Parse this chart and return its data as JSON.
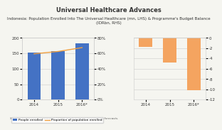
{
  "title": "Universal Healthcare Advances",
  "subtitle": "Indonesia: Population Enrolled Into The Universal Healthcare (mn, LHS) & Programme's Budget Balance\n(IDRbn, RHS)",
  "source": "Source: Indonesia Investments *2016 are Indonesia investment forecasts.",
  "left": {
    "years": [
      "2014",
      "2015",
      "2016*"
    ],
    "bar_values": [
      152,
      158,
      182
    ],
    "line_values": [
      0.595,
      0.625,
      0.675
    ],
    "bar_color": "#4472c4",
    "line_color": "#f0a040",
    "ylim_left": [
      0,
      200
    ],
    "ylim_right": [
      0,
      0.8
    ],
    "yticks_left": [
      0,
      50,
      100,
      150,
      200
    ],
    "yticks_right": [
      0.0,
      0.2,
      0.4,
      0.6,
      0.8
    ],
    "ytick_labels_right": [
      "0%",
      "20%",
      "40%",
      "60%",
      "80%"
    ],
    "legend_bar": "People enrolled",
    "legend_line": "Proportion of population enrolled"
  },
  "right": {
    "years": [
      "2014",
      "2015",
      "2016*"
    ],
    "bar_values": [
      -1.8,
      -4.8,
      -10.2
    ],
    "bar_color": "#f4a460",
    "ylim": [
      0,
      -12
    ],
    "yticks": [
      0,
      -2,
      -4,
      -6,
      -8,
      -10,
      -12
    ],
    "bg_color": "#f9f9f5"
  },
  "bg_color": "#f5f5f0",
  "text_color": "#333333",
  "grid_color": "#cccccc"
}
